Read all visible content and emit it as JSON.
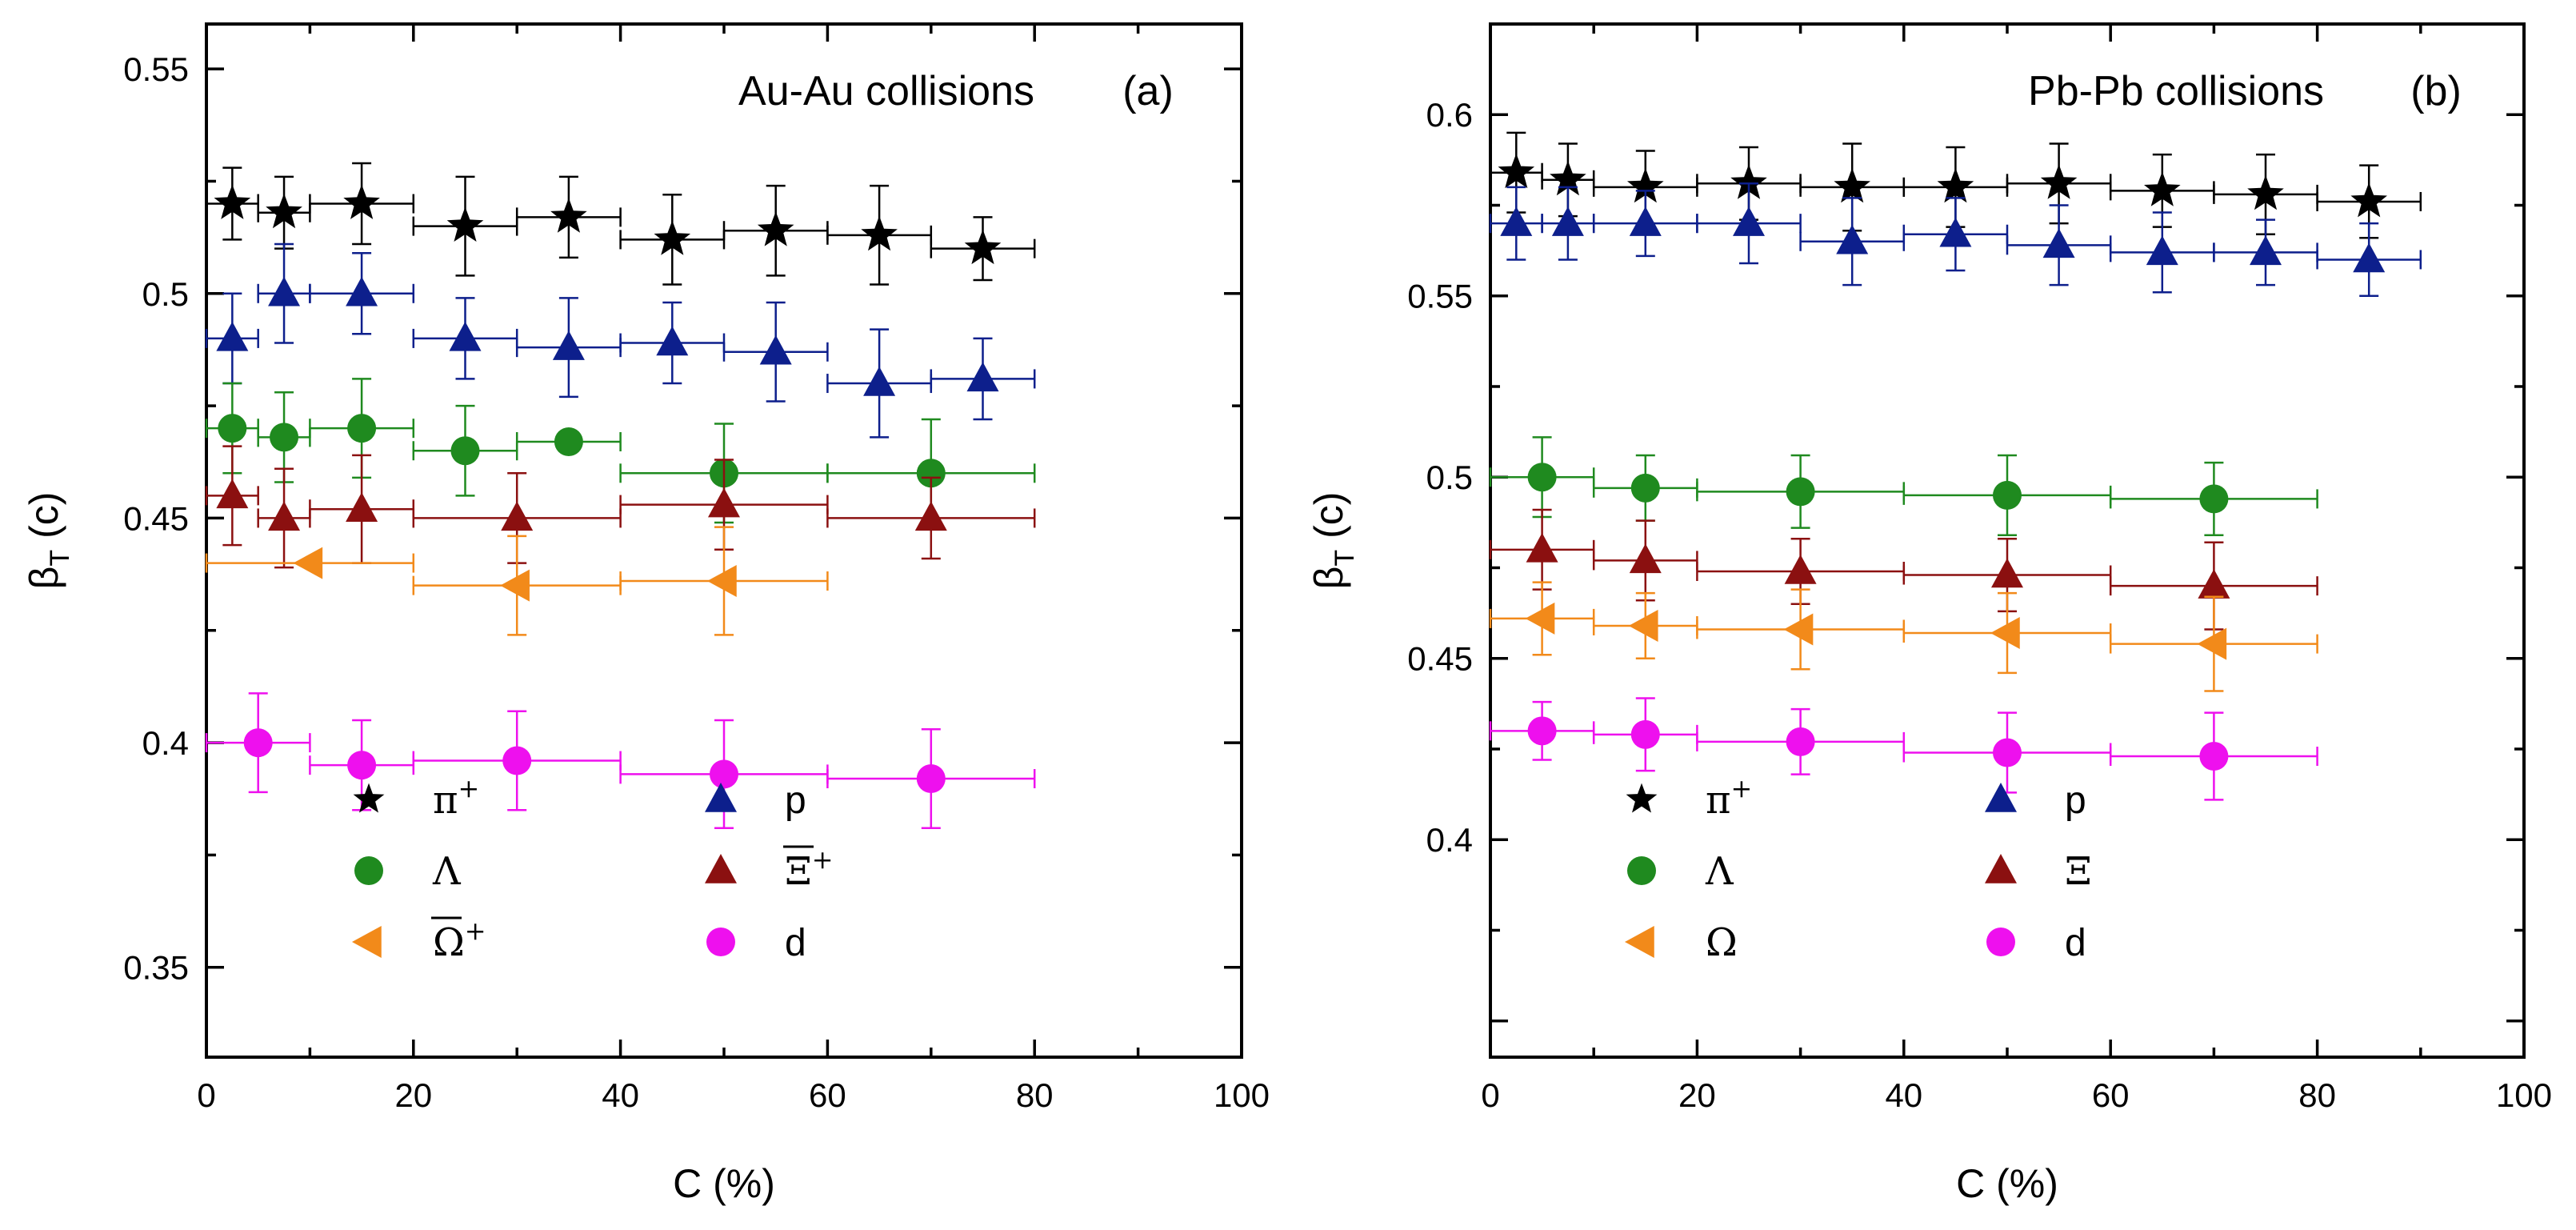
{
  "chart_data": [
    {
      "panel": "a",
      "type": "scatter",
      "title": "Au-Au collisions",
      "panel_label": "(a)",
      "xlabel": "C (%)",
      "ylabel": {
        "main": "β",
        "sub": "T",
        "unit": " (c)"
      },
      "xlim": [
        0,
        100
      ],
      "ylim": [
        0.33,
        0.56
      ],
      "xticks": [
        0,
        20,
        40,
        60,
        80,
        100
      ],
      "yticks": [
        0.35,
        0.4,
        0.45,
        0.5,
        0.55
      ],
      "xtick_labels": [
        "0",
        "20",
        "40",
        "60",
        "80",
        "100"
      ],
      "ytick_labels": [
        "0.35",
        "0.4",
        "0.45",
        "0.5",
        "0.55"
      ],
      "grid": false,
      "legend_position": "bottom-left",
      "legend_rows": [
        [
          {
            "series": "pi_plus",
            "label": "π",
            "sup": "+"
          },
          {
            "series": "p",
            "label": "p"
          }
        ],
        [
          {
            "series": "Lambda",
            "label": "Λ"
          },
          {
            "series": "Xi_bar_plus",
            "label": "Ξ",
            "sup": "+",
            "overline": true
          }
        ],
        [
          {
            "series": "Omega_bar_plus",
            "label": "Ω",
            "sup": "+",
            "overline": true
          },
          {
            "series": "d",
            "label": "d"
          }
        ]
      ],
      "series": [
        {
          "name": "pi_plus",
          "label": "π+",
          "marker": "star",
          "color": "#000000",
          "points": [
            {
              "x": 2.5,
              "y": 0.52,
              "xlo": 0,
              "xhi": 5,
              "yerr": 0.008
            },
            {
              "x": 7.5,
              "y": 0.518,
              "xlo": 5,
              "xhi": 10,
              "yerr": 0.008
            },
            {
              "x": 15,
              "y": 0.52,
              "xlo": 10,
              "xhi": 20,
              "yerr": 0.009
            },
            {
              "x": 25,
              "y": 0.515,
              "xlo": 20,
              "xhi": 30,
              "yerr": 0.011
            },
            {
              "x": 35,
              "y": 0.517,
              "xlo": 30,
              "xhi": 40,
              "yerr": 0.009
            },
            {
              "x": 45,
              "y": 0.512,
              "xlo": 40,
              "xhi": 50,
              "yerr": 0.01
            },
            {
              "x": 55,
              "y": 0.514,
              "xlo": 50,
              "xhi": 60,
              "yerr": 0.01
            },
            {
              "x": 65,
              "y": 0.513,
              "xlo": 60,
              "xhi": 70,
              "yerr": 0.011
            },
            {
              "x": 75,
              "y": 0.51,
              "xlo": 70,
              "xhi": 80,
              "yerr": 0.007
            }
          ]
        },
        {
          "name": "p",
          "label": "p",
          "marker": "triangle-up",
          "color": "#0d1f8c",
          "points": [
            {
              "x": 2.5,
              "y": 0.49,
              "xlo": 0,
              "xhi": 5,
              "yerr": 0.01
            },
            {
              "x": 7.5,
              "y": 0.5,
              "xlo": 5,
              "xhi": 10,
              "yerr": 0.011
            },
            {
              "x": 15,
              "y": 0.5,
              "xlo": 10,
              "xhi": 20,
              "yerr": 0.009
            },
            {
              "x": 25,
              "y": 0.49,
              "xlo": 20,
              "xhi": 30,
              "yerr": 0.009
            },
            {
              "x": 35,
              "y": 0.488,
              "xlo": 30,
              "xhi": 40,
              "yerr": 0.011
            },
            {
              "x": 45,
              "y": 0.489,
              "xlo": 40,
              "xhi": 50,
              "yerr": 0.009
            },
            {
              "x": 55,
              "y": 0.487,
              "xlo": 50,
              "xhi": 60,
              "yerr": 0.011
            },
            {
              "x": 65,
              "y": 0.48,
              "xlo": 60,
              "xhi": 70,
              "yerr": 0.012
            },
            {
              "x": 75,
              "y": 0.481,
              "xlo": 70,
              "xhi": 80,
              "yerr": 0.009
            }
          ]
        },
        {
          "name": "Lambda",
          "label": "Λ",
          "marker": "circle",
          "color": "#1f8a1f",
          "points": [
            {
              "x": 2.5,
              "y": 0.47,
              "xlo": 0,
              "xhi": 5,
              "yerr": 0.01
            },
            {
              "x": 7.5,
              "y": 0.468,
              "xlo": 5,
              "xhi": 10,
              "yerr": 0.01
            },
            {
              "x": 15,
              "y": 0.47,
              "xlo": 10,
              "xhi": 20,
              "yerr": 0.011
            },
            {
              "x": 25,
              "y": 0.465,
              "xlo": 20,
              "xhi": 30,
              "yerr": 0.01
            },
            {
              "x": 35,
              "y": 0.467,
              "xlo": 30,
              "xhi": 40,
              "yerr": 0
            },
            {
              "x": 50,
              "y": 0.46,
              "xlo": 40,
              "xhi": 60,
              "yerr": 0.011
            },
            {
              "x": 70,
              "y": 0.46,
              "xlo": 60,
              "xhi": 80,
              "yerr": 0.012
            }
          ]
        },
        {
          "name": "Xi_bar_plus",
          "label": "Ξ̄+",
          "marker": "triangle-up",
          "color": "#8b1010",
          "points": [
            {
              "x": 2.5,
              "y": 0.455,
              "xlo": 0,
              "xhi": 5,
              "yerr": 0.011
            },
            {
              "x": 7.5,
              "y": 0.45,
              "xlo": 5,
              "xhi": 10,
              "yerr": 0.011
            },
            {
              "x": 15,
              "y": 0.452,
              "xlo": 10,
              "xhi": 20,
              "yerr": 0.012
            },
            {
              "x": 30,
              "y": 0.45,
              "xlo": 20,
              "xhi": 40,
              "yerr": 0.01
            },
            {
              "x": 50,
              "y": 0.453,
              "xlo": 40,
              "xhi": 60,
              "yerr": 0.01
            },
            {
              "x": 70,
              "y": 0.45,
              "xlo": 60,
              "xhi": 80,
              "yerr": 0.009
            }
          ]
        },
        {
          "name": "Omega_bar_plus",
          "label": "Ω̄+",
          "marker": "triangle-left",
          "color": "#f28a1a",
          "points": [
            {
              "x": 10,
              "y": 0.44,
              "xlo": 0,
              "xhi": 20,
              "yerr": 0
            },
            {
              "x": 30,
              "y": 0.435,
              "xlo": 20,
              "xhi": 40,
              "yerr": 0.011
            },
            {
              "x": 50,
              "y": 0.436,
              "xlo": 40,
              "xhi": 60,
              "yerr": 0.012
            }
          ]
        },
        {
          "name": "d",
          "label": "d",
          "marker": "circle",
          "color": "#ee10ee",
          "points": [
            {
              "x": 5,
              "y": 0.4,
              "xlo": 0,
              "xhi": 10,
              "yerr": 0.011
            },
            {
              "x": 15,
              "y": 0.395,
              "xlo": 10,
              "xhi": 20,
              "yerr": 0.01
            },
            {
              "x": 30,
              "y": 0.396,
              "xlo": 20,
              "xhi": 40,
              "yerr": 0.011
            },
            {
              "x": 50,
              "y": 0.393,
              "xlo": 40,
              "xhi": 60,
              "yerr": 0.012
            },
            {
              "x": 70,
              "y": 0.392,
              "xlo": 60,
              "xhi": 80,
              "yerr": 0.011
            }
          ]
        }
      ]
    },
    {
      "panel": "b",
      "type": "scatter",
      "title": "Pb-Pb collisions",
      "panel_label": "(b)",
      "xlabel": "C (%)",
      "ylabel": {
        "main": "β",
        "sub": "T",
        "unit": " (c)"
      },
      "xlim": [
        0,
        100
      ],
      "ylim": [
        0.34,
        0.625
      ],
      "xticks": [
        0,
        20,
        40,
        60,
        80,
        100
      ],
      "yticks": [
        0.4,
        0.45,
        0.5,
        0.55,
        0.6
      ],
      "xtick_labels": [
        "0",
        "20",
        "40",
        "60",
        "80",
        "100"
      ],
      "ytick_labels": [
        "0.4",
        "0.45",
        "0.5",
        "0.55",
        "0.6"
      ],
      "grid": false,
      "legend_position": "bottom-left",
      "legend_rows": [
        [
          {
            "series": "pi_plus",
            "label": "π",
            "sup": "+"
          },
          {
            "series": "p",
            "label": "p"
          }
        ],
        [
          {
            "series": "Lambda",
            "label": "Λ"
          },
          {
            "series": "Xi",
            "label": "Ξ"
          }
        ],
        [
          {
            "series": "Omega",
            "label": "Ω"
          },
          {
            "series": "d",
            "label": "d"
          }
        ]
      ],
      "series": [
        {
          "name": "pi_plus",
          "label": "π+",
          "marker": "star",
          "color": "#000000",
          "points": [
            {
              "x": 2.5,
              "y": 0.584,
              "xlo": 0,
              "xhi": 5,
              "yerr": 0.011
            },
            {
              "x": 7.5,
              "y": 0.582,
              "xlo": 5,
              "xhi": 10,
              "yerr": 0.01
            },
            {
              "x": 15,
              "y": 0.58,
              "xlo": 10,
              "xhi": 20,
              "yerr": 0.01
            },
            {
              "x": 25,
              "y": 0.581,
              "xlo": 20,
              "xhi": 30,
              "yerr": 0.01
            },
            {
              "x": 35,
              "y": 0.58,
              "xlo": 30,
              "xhi": 40,
              "yerr": 0.012
            },
            {
              "x": 45,
              "y": 0.58,
              "xlo": 40,
              "xhi": 50,
              "yerr": 0.011
            },
            {
              "x": 55,
              "y": 0.581,
              "xlo": 50,
              "xhi": 60,
              "yerr": 0.011
            },
            {
              "x": 65,
              "y": 0.579,
              "xlo": 60,
              "xhi": 70,
              "yerr": 0.01
            },
            {
              "x": 75,
              "y": 0.578,
              "xlo": 70,
              "xhi": 80,
              "yerr": 0.011
            },
            {
              "x": 85,
              "y": 0.576,
              "xlo": 80,
              "xhi": 90,
              "yerr": 0.01
            }
          ]
        },
        {
          "name": "p",
          "label": "p",
          "marker": "triangle-up",
          "color": "#0d1f8c",
          "points": [
            {
              "x": 2.5,
              "y": 0.57,
              "xlo": 0,
              "xhi": 5,
              "yerr": 0.01
            },
            {
              "x": 7.5,
              "y": 0.57,
              "xlo": 5,
              "xhi": 10,
              "yerr": 0.01
            },
            {
              "x": 15,
              "y": 0.57,
              "xlo": 10,
              "xhi": 20,
              "yerr": 0.009
            },
            {
              "x": 25,
              "y": 0.57,
              "xlo": 20,
              "xhi": 30,
              "yerr": 0.011
            },
            {
              "x": 35,
              "y": 0.565,
              "xlo": 30,
              "xhi": 40,
              "yerr": 0.012
            },
            {
              "x": 45,
              "y": 0.567,
              "xlo": 40,
              "xhi": 50,
              "yerr": 0.01
            },
            {
              "x": 55,
              "y": 0.564,
              "xlo": 50,
              "xhi": 60,
              "yerr": 0.011
            },
            {
              "x": 65,
              "y": 0.562,
              "xlo": 60,
              "xhi": 70,
              "yerr": 0.011
            },
            {
              "x": 75,
              "y": 0.562,
              "xlo": 70,
              "xhi": 80,
              "yerr": 0.009
            },
            {
              "x": 85,
              "y": 0.56,
              "xlo": 80,
              "xhi": 90,
              "yerr": 0.01
            }
          ]
        },
        {
          "name": "Lambda",
          "label": "Λ",
          "marker": "circle",
          "color": "#1f8a1f",
          "points": [
            {
              "x": 5,
              "y": 0.5,
              "xlo": 0,
              "xhi": 10,
              "yerr": 0.011
            },
            {
              "x": 15,
              "y": 0.497,
              "xlo": 10,
              "xhi": 20,
              "yerr": 0.009
            },
            {
              "x": 30,
              "y": 0.496,
              "xlo": 20,
              "xhi": 40,
              "yerr": 0.01
            },
            {
              "x": 50,
              "y": 0.495,
              "xlo": 40,
              "xhi": 60,
              "yerr": 0.011
            },
            {
              "x": 70,
              "y": 0.494,
              "xlo": 60,
              "xhi": 80,
              "yerr": 0.01
            }
          ]
        },
        {
          "name": "Xi",
          "label": "Ξ",
          "marker": "triangle-up",
          "color": "#8b1010",
          "points": [
            {
              "x": 5,
              "y": 0.48,
              "xlo": 0,
              "xhi": 10,
              "yerr": 0.011
            },
            {
              "x": 15,
              "y": 0.477,
              "xlo": 10,
              "xhi": 20,
              "yerr": 0.011
            },
            {
              "x": 30,
              "y": 0.474,
              "xlo": 20,
              "xhi": 40,
              "yerr": 0.009
            },
            {
              "x": 50,
              "y": 0.473,
              "xlo": 40,
              "xhi": 60,
              "yerr": 0.01
            },
            {
              "x": 70,
              "y": 0.47,
              "xlo": 60,
              "xhi": 80,
              "yerr": 0.012
            }
          ]
        },
        {
          "name": "Omega",
          "label": "Ω",
          "marker": "triangle-left",
          "color": "#f28a1a",
          "points": [
            {
              "x": 5,
              "y": 0.461,
              "xlo": 0,
              "xhi": 10,
              "yerr": 0.01
            },
            {
              "x": 15,
              "y": 0.459,
              "xlo": 10,
              "xhi": 20,
              "yerr": 0.009
            },
            {
              "x": 30,
              "y": 0.458,
              "xlo": 20,
              "xhi": 40,
              "yerr": 0.011
            },
            {
              "x": 50,
              "y": 0.457,
              "xlo": 40,
              "xhi": 60,
              "yerr": 0.011
            },
            {
              "x": 70,
              "y": 0.454,
              "xlo": 60,
              "xhi": 80,
              "yerr": 0.013
            }
          ]
        },
        {
          "name": "d",
          "label": "d",
          "marker": "circle",
          "color": "#ee10ee",
          "points": [
            {
              "x": 5,
              "y": 0.43,
              "xlo": 0,
              "xhi": 10,
              "yerr": 0.008
            },
            {
              "x": 15,
              "y": 0.429,
              "xlo": 10,
              "xhi": 20,
              "yerr": 0.01
            },
            {
              "x": 30,
              "y": 0.427,
              "xlo": 20,
              "xhi": 40,
              "yerr": 0.009
            },
            {
              "x": 50,
              "y": 0.424,
              "xlo": 40,
              "xhi": 60,
              "yerr": 0.011
            },
            {
              "x": 70,
              "y": 0.423,
              "xlo": 60,
              "xhi": 80,
              "yerr": 0.012
            }
          ]
        }
      ]
    }
  ]
}
